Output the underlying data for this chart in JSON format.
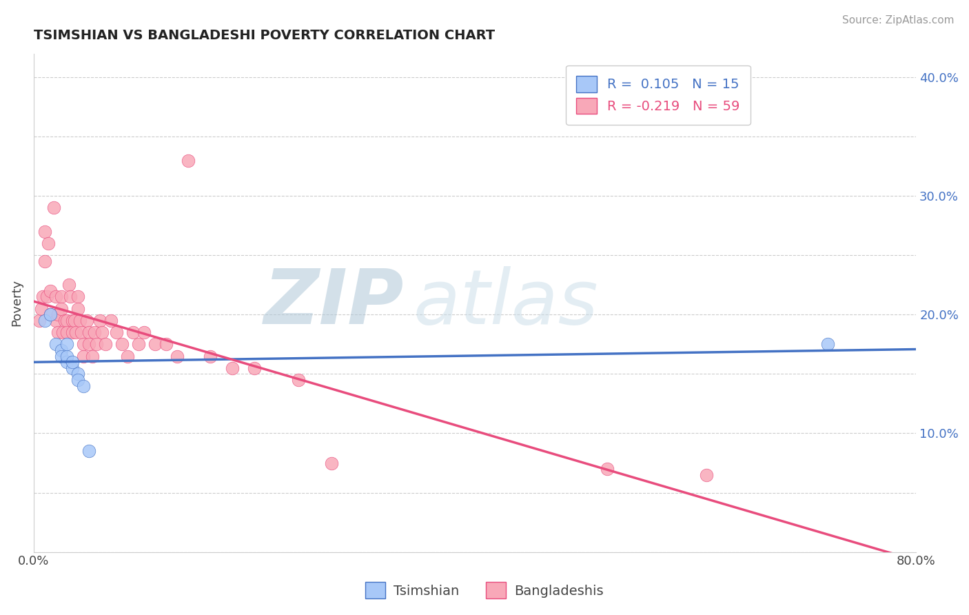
{
  "title": "TSIMSHIAN VS BANGLADESHI POVERTY CORRELATION CHART",
  "source": "Source: ZipAtlas.com",
  "ylabel": "Poverty",
  "xlim": [
    0.0,
    0.8
  ],
  "ylim": [
    0.0,
    0.42
  ],
  "xticks": [
    0.0,
    0.1,
    0.2,
    0.3,
    0.4,
    0.5,
    0.6,
    0.7,
    0.8
  ],
  "yticks": [
    0.0,
    0.05,
    0.1,
    0.15,
    0.2,
    0.25,
    0.3,
    0.35,
    0.4
  ],
  "right_ytick_labels": {
    "0.10": "10.0%",
    "0.20": "20.0%",
    "0.30": "30.0%",
    "0.40": "40.0%"
  },
  "tsimshian_color": "#a8c8f8",
  "bangladeshi_color": "#f8a8b8",
  "tsimshian_line_color": "#4472c4",
  "bangladeshi_line_color": "#e84c7d",
  "legend_line1": "R =  0.105   N = 15",
  "legend_line2": "R = -0.219   N = 59",
  "legend_color1": "#4472c4",
  "legend_color2": "#e84c7d",
  "watermark_zip": "ZIP",
  "watermark_atlas": "atlas",
  "background_color": "#ffffff",
  "grid_color": "#cccccc",
  "tsimshian_x": [
    0.01,
    0.015,
    0.02,
    0.025,
    0.025,
    0.03,
    0.03,
    0.03,
    0.035,
    0.035,
    0.04,
    0.04,
    0.045,
    0.05,
    0.72
  ],
  "tsimshian_y": [
    0.195,
    0.2,
    0.175,
    0.17,
    0.165,
    0.16,
    0.165,
    0.175,
    0.155,
    0.16,
    0.15,
    0.145,
    0.14,
    0.085,
    0.175
  ],
  "bangladeshi_x": [
    0.005,
    0.007,
    0.008,
    0.01,
    0.01,
    0.012,
    0.013,
    0.015,
    0.015,
    0.018,
    0.02,
    0.02,
    0.022,
    0.022,
    0.025,
    0.025,
    0.026,
    0.028,
    0.03,
    0.03,
    0.032,
    0.033,
    0.035,
    0.035,
    0.037,
    0.038,
    0.04,
    0.04,
    0.042,
    0.043,
    0.045,
    0.045,
    0.048,
    0.05,
    0.05,
    0.053,
    0.055,
    0.057,
    0.06,
    0.062,
    0.065,
    0.07,
    0.075,
    0.08,
    0.085,
    0.09,
    0.095,
    0.1,
    0.11,
    0.12,
    0.13,
    0.14,
    0.16,
    0.18,
    0.2,
    0.24,
    0.27,
    0.52,
    0.61
  ],
  "bangladeshi_y": [
    0.195,
    0.205,
    0.215,
    0.27,
    0.245,
    0.215,
    0.26,
    0.22,
    0.2,
    0.29,
    0.195,
    0.215,
    0.2,
    0.185,
    0.215,
    0.205,
    0.185,
    0.195,
    0.195,
    0.185,
    0.225,
    0.215,
    0.195,
    0.185,
    0.195,
    0.185,
    0.215,
    0.205,
    0.195,
    0.185,
    0.175,
    0.165,
    0.195,
    0.185,
    0.175,
    0.165,
    0.185,
    0.175,
    0.195,
    0.185,
    0.175,
    0.195,
    0.185,
    0.175,
    0.165,
    0.185,
    0.175,
    0.185,
    0.175,
    0.175,
    0.165,
    0.33,
    0.165,
    0.155,
    0.155,
    0.145,
    0.075,
    0.07,
    0.065
  ]
}
